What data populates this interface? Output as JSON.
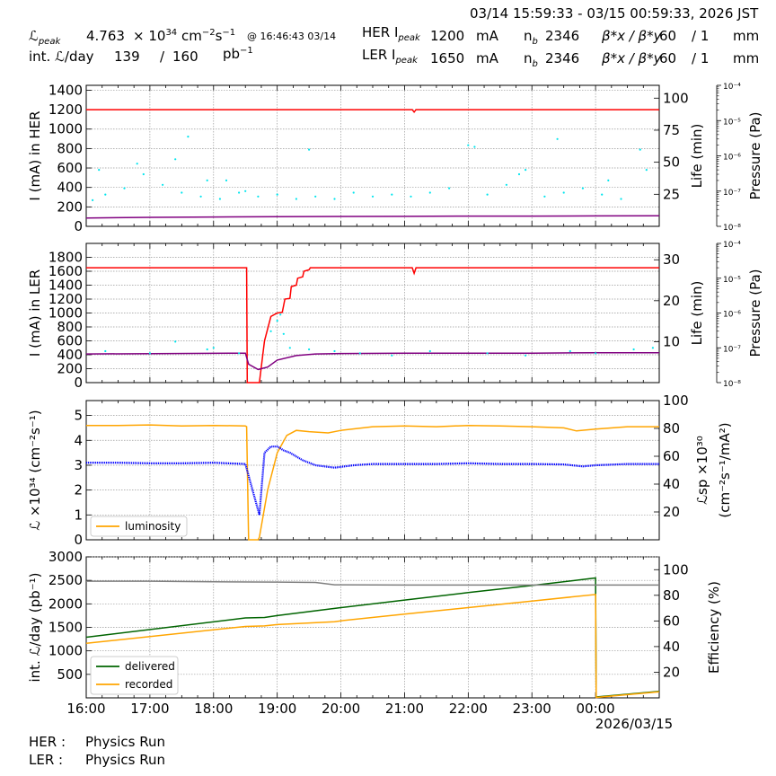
{
  "header": {
    "time_range": "03/14 15:59:33 - 03/15 00:59:33, 2026 JST",
    "row1": {
      "lum_label": "ℒ",
      "lum_sub": "peak",
      "lum_value": "4.763",
      "lum_unit_a": "× 10",
      "lum_unit_exp": "34",
      "lum_unit_b": "cm",
      "lum_unit_exp2": "−2",
      "lum_unit_c": "s",
      "lum_unit_exp3": "−1",
      "lum_time": "@ 16:46:43 03/14",
      "ring_label": "HER I",
      "ring_sub": "peak",
      "current": "1200",
      "current_unit": "mA",
      "nb_label": "n",
      "nb_sub": "b",
      "nb_value": "2346",
      "beta_label": "β*x / β*y",
      "beta_x": "60",
      "beta_sep": "/ 1",
      "beta_unit": "mm"
    },
    "row2": {
      "int_label": "int. ℒ/day",
      "int_value": "139",
      "int_sep": "/",
      "int_total": "160",
      "int_unit": "pb",
      "int_unit_exp": "−1",
      "ring_label": "LER I",
      "ring_sub": "peak",
      "current": "1650",
      "current_unit": "mA",
      "nb_label": "n",
      "nb_sub": "b",
      "nb_value": "2346",
      "beta_label": "β*x / β*y",
      "beta_x": "60",
      "beta_sep": "/ 1",
      "beta_unit": "mm"
    }
  },
  "footer": {
    "her_label": "HER :",
    "her_status": "Physics Run",
    "ler_label": "LER :",
    "ler_status": "Physics Run"
  },
  "colors": {
    "current": "#ff0000",
    "life": "#800080",
    "pressure": "#00e5ee",
    "luminosity": "#ffa500",
    "specific": "#0000ff",
    "delivered": "#006400",
    "recorded": "#ffa500",
    "efficiency": "#808080"
  },
  "chart_data": [
    {
      "type": "line",
      "ylabel": "I (mA) in HER",
      "ylabel_right": "Life (min)",
      "ylabel_right2": "Pressure (Pa)",
      "xlim": [
        16.0,
        25.0
      ],
      "ylim": [
        0,
        1450
      ],
      "yticks": [
        0,
        200,
        400,
        600,
        800,
        1000,
        1200,
        1400
      ],
      "ylim_right": [
        0,
        110
      ],
      "yticks_right": [
        25,
        50,
        75,
        100
      ],
      "log_right2": [
        -8,
        -4
      ],
      "log_ticks": [
        "10⁻⁸",
        "10⁻⁷",
        "10⁻⁶",
        "10⁻⁵",
        "10⁻⁴"
      ],
      "grid": true,
      "series": [
        {
          "role": "current",
          "x": [
            16.0,
            21.12,
            21.15,
            21.18,
            25.0
          ],
          "y": [
            1200,
            1200,
            1175,
            1200,
            1200
          ]
        },
        {
          "role": "life",
          "x": [
            16.0,
            17.0,
            18.0,
            19.0,
            20.0,
            21.0,
            22.0,
            23.0,
            24.0,
            25.0
          ],
          "y": [
            6.5,
            7.0,
            7.3,
            7.5,
            7.7,
            7.8,
            8.0,
            8.0,
            8.1,
            8.2
          ]
        },
        {
          "role": "pressure",
          "x": [
            16.1,
            16.3,
            16.6,
            16.9,
            17.2,
            17.5,
            17.8,
            18.1,
            18.4,
            18.7,
            19.0,
            19.3,
            19.6,
            19.9,
            20.2,
            20.5,
            20.8,
            21.1,
            21.4,
            21.7,
            22.0,
            22.3,
            22.6,
            22.9,
            23.2,
            23.5,
            23.8,
            24.1,
            24.4,
            24.7,
            16.2,
            16.8,
            17.4,
            17.9,
            18.5,
            19.5,
            22.1,
            22.8,
            23.4,
            24.2,
            24.8,
            17.6,
            18.2
          ],
          "y": [
            5.5e-08,
            8e-08,
            1.2e-07,
            3e-07,
            1.5e-07,
            9e-08,
            7e-08,
            6e-08,
            9e-08,
            7e-08,
            8e-08,
            6e-08,
            7e-08,
            6e-08,
            9e-08,
            7e-08,
            8e-08,
            7e-08,
            9e-08,
            1.2e-07,
            2e-06,
            8e-08,
            1.5e-07,
            4e-07,
            7e-08,
            9e-08,
            1.2e-07,
            8e-08,
            6e-08,
            1.5e-06,
            4e-07,
            6e-07,
            8e-07,
            2e-07,
            1e-07,
            1.5e-06,
            1.8e-06,
            3e-07,
            3e-06,
            2e-07,
            4e-07,
            3.5e-06,
            2e-07
          ]
        }
      ]
    },
    {
      "type": "line",
      "ylabel": "I (mA) in LER",
      "ylabel_right": "Life (min)",
      "ylabel_right2": "Pressure (Pa)",
      "xlim": [
        16.0,
        25.0
      ],
      "ylim": [
        0,
        2000
      ],
      "yticks": [
        0,
        200,
        400,
        600,
        800,
        1000,
        1200,
        1400,
        1600,
        1800
      ],
      "ylim_right": [
        0,
        34
      ],
      "yticks_right": [
        10,
        20,
        30
      ],
      "log_right2": [
        -8,
        -4
      ],
      "log_ticks": [
        "10⁻⁸",
        "10⁻⁷",
        "10⁻⁶",
        "10⁻⁵",
        "10⁻⁴"
      ],
      "grid": true,
      "series": [
        {
          "role": "current",
          "x": [
            16.0,
            18.52,
            18.53,
            18.72,
            18.8,
            18.9,
            19.0,
            19.08,
            19.12,
            19.2,
            19.22,
            19.3,
            19.32,
            19.4,
            19.42,
            19.5,
            19.52,
            21.12,
            21.15,
            21.18,
            25.0
          ],
          "y": [
            1650,
            1650,
            0,
            0,
            600,
            950,
            1000,
            1010,
            1200,
            1210,
            1380,
            1400,
            1500,
            1520,
            1600,
            1620,
            1650,
            1650,
            1570,
            1650,
            1650
          ]
        },
        {
          "role": "life",
          "x": [
            16.0,
            18.5,
            18.55,
            18.7,
            18.85,
            19.0,
            19.3,
            19.6,
            20.0,
            21.0,
            22.0,
            23.0,
            24.0,
            25.0
          ],
          "y": [
            7.0,
            7.2,
            4.5,
            3.2,
            3.8,
            5.5,
            6.6,
            7.0,
            7.1,
            7.2,
            7.2,
            7.2,
            7.3,
            7.3
          ]
        },
        {
          "role": "pressure",
          "x": [
            16.3,
            17.0,
            17.4,
            17.9,
            18.0,
            18.4,
            18.9,
            19.0,
            19.2,
            19.5,
            19.9,
            20.3,
            20.8,
            21.4,
            22.3,
            22.9,
            23.6,
            24.0,
            24.6,
            24.9,
            19.1,
            19.05
          ],
          "y": [
            8e-08,
            7e-08,
            1.5e-07,
            9e-08,
            1e-07,
            7e-08,
            3e-07,
            6e-07,
            1e-07,
            9e-08,
            8e-08,
            7e-08,
            6e-08,
            8e-08,
            7e-08,
            6e-08,
            8e-08,
            7e-08,
            9e-08,
            1e-07,
            2.5e-07,
            9e-07
          ]
        }
      ]
    },
    {
      "type": "line",
      "ylabel": "ℒ ×10³⁴ (cm⁻²s⁻¹)",
      "ylabel_right": "ℒsp ×10³⁰",
      "ylabel_right2": "(cm⁻²s⁻¹/mA²)",
      "xlim": [
        16.0,
        25.0
      ],
      "ylim": [
        0,
        5.6
      ],
      "yticks": [
        0,
        1,
        2,
        3,
        4,
        5
      ],
      "ylim_right": [
        0,
        100
      ],
      "yticks_right": [
        20,
        40,
        60,
        80,
        100
      ],
      "legend": "bottom-left",
      "grid": true,
      "series": [
        {
          "name": "luminosity",
          "role": "luminosity",
          "x": [
            16.0,
            16.5,
            17.0,
            17.5,
            18.0,
            18.5,
            18.52,
            18.55,
            18.7,
            18.72,
            18.85,
            19.0,
            19.15,
            19.3,
            19.5,
            19.8,
            20.0,
            20.5,
            21.0,
            21.5,
            22.0,
            22.5,
            23.0,
            23.5,
            23.7,
            24.0,
            24.5,
            25.0
          ],
          "y": [
            4.6,
            4.6,
            4.62,
            4.58,
            4.6,
            4.58,
            4.55,
            0,
            0,
            0.1,
            2.0,
            3.5,
            4.2,
            4.4,
            4.35,
            4.3,
            4.4,
            4.55,
            4.58,
            4.55,
            4.6,
            4.58,
            4.55,
            4.5,
            4.38,
            4.45,
            4.55,
            4.55
          ]
        },
        {
          "role": "specific",
          "x": [
            16.0,
            16.5,
            17.0,
            17.5,
            18.0,
            18.5,
            18.72,
            18.8,
            18.9,
            19.0,
            19.1,
            19.2,
            19.4,
            19.6,
            19.9,
            20.2,
            20.5,
            21.0,
            21.5,
            22.0,
            22.5,
            23.0,
            23.5,
            23.8,
            24.0,
            24.5,
            25.0
          ],
          "y": [
            3.1,
            3.1,
            3.08,
            3.08,
            3.1,
            3.05,
            1.0,
            3.5,
            3.75,
            3.75,
            3.6,
            3.5,
            3.2,
            3.0,
            2.9,
            3.0,
            3.05,
            3.05,
            3.05,
            3.08,
            3.05,
            3.05,
            3.03,
            2.95,
            3.0,
            3.05,
            3.05
          ]
        }
      ]
    },
    {
      "type": "line",
      "ylabel": "int. ℒ/day (pb⁻¹)",
      "ylabel_right": "Efficiency (%)",
      "xlim": [
        16.0,
        25.0
      ],
      "ylim": [
        0,
        3000
      ],
      "yticks": [
        500,
        1000,
        1500,
        2000,
        2500,
        3000
      ],
      "ylim_right": [
        0,
        110
      ],
      "yticks_right": [
        20,
        40,
        60,
        80,
        100
      ],
      "xticks": [
        "16:00",
        "17:00",
        "18:00",
        "19:00",
        "20:00",
        "21:00",
        "22:00",
        "23:00",
        "00:00"
      ],
      "xticks_at": [
        16,
        17,
        18,
        19,
        20,
        21,
        22,
        23,
        24
      ],
      "date_label": "2026/03/15",
      "legend": "bottom-left",
      "grid": true,
      "series": [
        {
          "name": "delivered",
          "role": "delivered",
          "x": [
            16.0,
            18.5,
            18.8,
            19.0,
            20.0,
            21.0,
            22.0,
            23.0,
            24.0,
            24.01,
            25.0
          ],
          "y": [
            1290,
            1700,
            1710,
            1750,
            1920,
            2080,
            2240,
            2390,
            2550,
            20,
            140
          ]
        },
        {
          "name": "recorded",
          "role": "recorded",
          "x": [
            16.0,
            18.5,
            18.8,
            19.0,
            19.9,
            20.0,
            21.0,
            22.0,
            23.0,
            24.0,
            24.01,
            25.0
          ],
          "y": [
            1160,
            1520,
            1530,
            1560,
            1620,
            1640,
            1780,
            1920,
            2060,
            2200,
            10,
            130
          ]
        },
        {
          "role": "efficiency",
          "x": [
            16.0,
            17.0,
            18.0,
            19.0,
            19.6,
            19.9,
            21.0,
            22.0,
            23.0,
            24.0,
            25.0
          ],
          "y": [
            91,
            91,
            90.5,
            90.3,
            90,
            88.2,
            88,
            88,
            88,
            88,
            88
          ]
        }
      ]
    }
  ]
}
